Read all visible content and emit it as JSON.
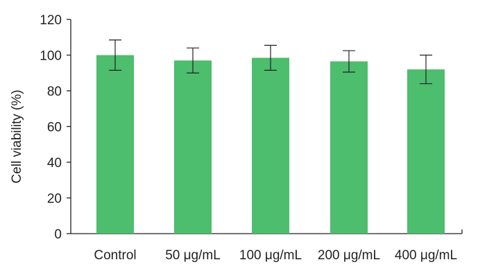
{
  "chart_data": {
    "type": "bar",
    "title": "",
    "xlabel": "",
    "ylabel": "Cell viability (%)",
    "ylim": [
      0,
      120
    ],
    "yticks": [
      "0",
      "20",
      "40",
      "60",
      "80",
      "100",
      "120"
    ],
    "categories": [
      "Control",
      "50 μg/mL",
      "100 μg/mL",
      "200 μg/mL",
      "400 μg/mL"
    ],
    "values": [
      100,
      97,
      98.5,
      96.5,
      92
    ],
    "errors": [
      8.5,
      7,
      7,
      6,
      8
    ],
    "bar_color": "#4dbd6e",
    "axis_color": "#231f20",
    "grid": false,
    "legend": "none"
  }
}
